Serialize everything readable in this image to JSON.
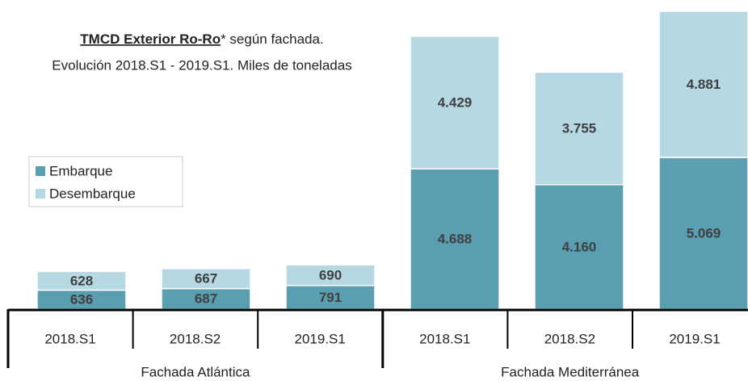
{
  "chart_data": {
    "type": "stacked-bar",
    "title_bold": "TMCD Exterior Ro-Ro",
    "title_rest": "* según fachada.",
    "subtitle": "Evolución 2018.S1 - 2019.S1. Miles de toneladas",
    "groups": [
      "Fachada Atlántica",
      "Fachada Mediterránea"
    ],
    "categories": [
      "2018.S1",
      "2018.S2",
      "2019.S1",
      "2018.S1",
      "2018.S2",
      "2019.S1"
    ],
    "series": [
      {
        "name": "Embarque",
        "color": "#5a9eb1",
        "values": [
          636,
          687,
          791,
          4688,
          4160,
          5069
        ],
        "value_labels": [
          "636",
          "687",
          "791",
          "4.688",
          "4.160",
          "5.069"
        ]
      },
      {
        "name": "Desembarque",
        "color": "#b5d8e3",
        "values": [
          628,
          667,
          690,
          4429,
          3755,
          4881
        ],
        "value_labels": [
          "628",
          "667",
          "690",
          "4.429",
          "3.755",
          "4.881"
        ]
      }
    ]
  }
}
